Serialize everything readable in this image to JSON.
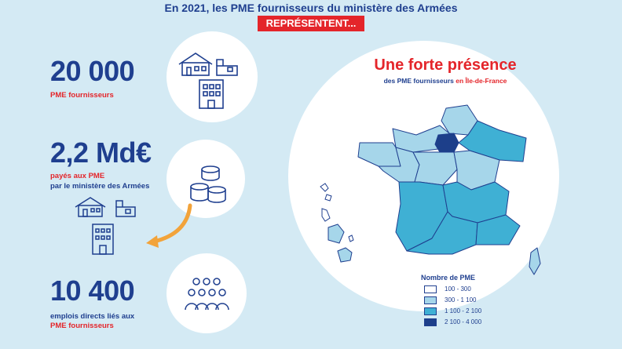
{
  "header": {
    "title": "En 2021, les PME fournisseurs du ministère des Armées",
    "badge": "REPRÉSENTENT..."
  },
  "stats": [
    {
      "value": "20 000",
      "label_line1": "PME fournisseurs",
      "label_line2": ""
    },
    {
      "value": "2,2 Md€",
      "label_line1": "payés aux PME",
      "label_line2": "par le ministère des Armées"
    },
    {
      "value": "10 400",
      "label_line1": "emplois directs liés aux",
      "label_line2": "PME fournisseurs"
    }
  ],
  "icons": {
    "buildings": "buildings-icon",
    "coins": "coins-icon",
    "people": "people-icon",
    "arrow": "curved-arrow-icon"
  },
  "map": {
    "title": "Une forte présence",
    "subtitle_prefix": "des PME fournisseurs ",
    "subtitle_highlight": "en Île-de-France",
    "legend_title": "Nombre de PME",
    "legend": [
      {
        "range": "100 - 300",
        "color": "#ffffff"
      },
      {
        "range": "300 - 1 100",
        "color": "#a6d6ea"
      },
      {
        "range": "1 100 - 2 100",
        "color": "#3fb0d4"
      },
      {
        "range": "2 100 - 4 000",
        "color": "#1d3f8a"
      }
    ]
  },
  "colors": {
    "background": "#d4eaf4",
    "navy": "#1f3f8f",
    "red": "#e4252a",
    "orange": "#f2a33a"
  }
}
